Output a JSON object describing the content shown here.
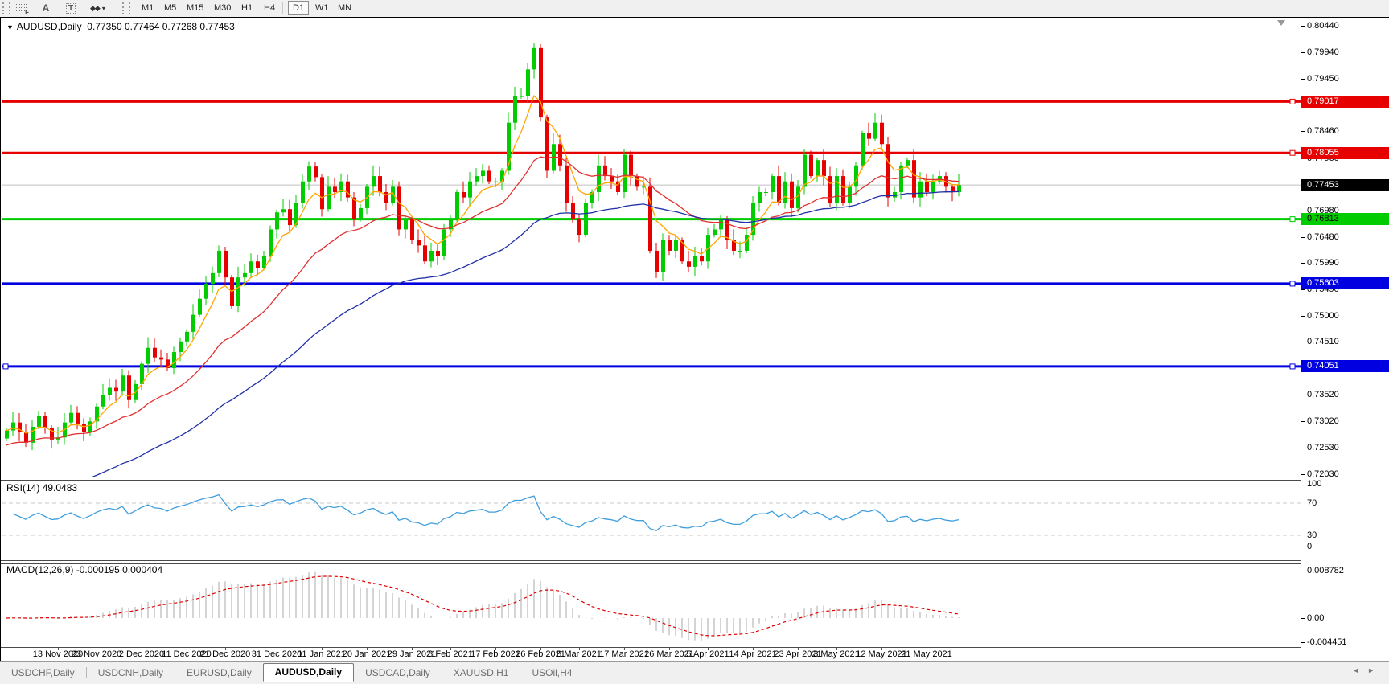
{
  "toolbar": {
    "tools": [
      {
        "name": "fibonacci-tool",
        "glyph": "F"
      },
      {
        "name": "text-label-tool",
        "glyph": "A"
      },
      {
        "name": "text-box-tool",
        "glyph": "T"
      },
      {
        "name": "arrow-tools",
        "glyph": "◆◆",
        "dropdown": "▾"
      }
    ],
    "timeframes": [
      "M1",
      "M5",
      "M15",
      "M30",
      "H1",
      "H4",
      "D1",
      "W1",
      "MN"
    ],
    "active_timeframe": "D1"
  },
  "chart_title": {
    "menu_icon": "▼",
    "symbol": "AUDUSD,Daily",
    "ohlc": "0.77350 0.77464 0.77268 0.77453"
  },
  "price_axis": {
    "ticks": [
      0.8044,
      0.7994,
      0.7945,
      0.7895,
      0.7846,
      0.7796,
      0.7747,
      0.7698,
      0.7648,
      0.7599,
      0.7549,
      0.75,
      0.7451,
      0.7402,
      0.7352,
      0.7302,
      0.7253,
      0.7203
    ],
    "badges": [
      {
        "label": "0.79017",
        "price": 0.79017,
        "bg": "#e60000",
        "fg": "#ffffff"
      },
      {
        "label": "0.78055",
        "price": 0.78055,
        "bg": "#e60000",
        "fg": "#ffffff"
      },
      {
        "label": "0.77453",
        "price": 0.77453,
        "bg": "#000000",
        "fg": "#ffffff"
      },
      {
        "label": "0.76813",
        "price": 0.76813,
        "bg": "#00cc00",
        "fg": "#000000"
      },
      {
        "label": "0.75603",
        "price": 0.75603,
        "bg": "#0000e0",
        "fg": "#ffffff"
      },
      {
        "label": "0.74051",
        "price": 0.74051,
        "bg": "#0000e0",
        "fg": "#ffffff"
      }
    ]
  },
  "rsi_panel": {
    "label": "RSI(14)",
    "value": "49.0483",
    "axis": [
      "100",
      "70",
      "30",
      "0"
    ]
  },
  "macd_panel": {
    "label": "MACD(12,26,9)",
    "values": "-0.000195 0.000404",
    "axis_top": "0.008782",
    "axis_zero": "0.00",
    "axis_bottom": "-0.004451"
  },
  "tabs": {
    "items": [
      {
        "label": "USDCHF,Daily",
        "active": false
      },
      {
        "label": "USDCNH,Daily",
        "active": false
      },
      {
        "label": "EURUSD,Daily",
        "active": false
      },
      {
        "label": "AUDUSD,Daily",
        "active": true
      },
      {
        "label": "USDCAD,Daily",
        "active": false
      },
      {
        "label": "XAUUSD,H1",
        "active": false
      },
      {
        "label": "USOil,H4",
        "active": false
      }
    ],
    "scroll_left": "◄",
    "scroll_right": "►"
  },
  "chart_data": {
    "type": "candlestick",
    "symbol": "AUDUSD",
    "timeframe": "Daily",
    "last_ohlc": {
      "open": 0.7735,
      "high": 0.77464,
      "low": 0.77268,
      "close": 0.77453
    },
    "price_axis_range": [
      0.72,
      0.8059
    ],
    "x_labels": [
      {
        "label": "13 Nov 2020",
        "bar": 8
      },
      {
        "label": "23 Nov 2020",
        "bar": 14
      },
      {
        "label": "2 Dec 2020",
        "bar": 21
      },
      {
        "label": "11 Dec 2020",
        "bar": 28
      },
      {
        "label": "21 Dec 2020",
        "bar": 34
      },
      {
        "label": "31 Dec 2020",
        "bar": 42
      },
      {
        "label": "11 Jan 2021",
        "bar": 49
      },
      {
        "label": "20 Jan 2021",
        "bar": 56
      },
      {
        "label": "29 Jan 2021",
        "bar": 63
      },
      {
        "label": "8 Feb 2021",
        "bar": 69
      },
      {
        "label": "17 Feb 2021",
        "bar": 76
      },
      {
        "label": "26 Feb 2021",
        "bar": 83
      },
      {
        "label": "8 Mar 2021",
        "bar": 89
      },
      {
        "label": "17 Mar 2021",
        "bar": 96
      },
      {
        "label": "26 Mar 2021",
        "bar": 103
      },
      {
        "label": "5 Apr 2021",
        "bar": 109
      },
      {
        "label": "14 Apr 2021",
        "bar": 116
      },
      {
        "label": "23 Apr 2021",
        "bar": 123
      },
      {
        "label": "3 May 2021",
        "bar": 129
      },
      {
        "label": "12 May 2021",
        "bar": 136
      },
      {
        "label": "21 May 2021",
        "bar": 143
      }
    ],
    "closes": [
      0.7285,
      0.73,
      0.7282,
      0.7262,
      0.7292,
      0.7312,
      0.729,
      0.7268,
      0.7272,
      0.73,
      0.7318,
      0.7298,
      0.7282,
      0.7302,
      0.733,
      0.7352,
      0.7365,
      0.7358,
      0.7388,
      0.7342,
      0.7372,
      0.741,
      0.744,
      0.7422,
      0.7418,
      0.7402,
      0.7432,
      0.7452,
      0.747,
      0.7502,
      0.7532,
      0.756,
      0.758,
      0.7622,
      0.7572,
      0.7518,
      0.7572,
      0.758,
      0.7602,
      0.759,
      0.7612,
      0.7662,
      0.7694,
      0.77,
      0.767,
      0.7712,
      0.7752,
      0.778,
      0.776,
      0.77,
      0.7742,
      0.7732,
      0.7752,
      0.7722,
      0.7682,
      0.7702,
      0.7742,
      0.7762,
      0.7732,
      0.7712,
      0.7742,
      0.7662,
      0.7682,
      0.7642,
      0.7632,
      0.7602,
      0.7622,
      0.7612,
      0.7662,
      0.7682,
      0.7732,
      0.7722,
      0.7752,
      0.7762,
      0.7772,
      0.7752,
      0.7752,
      0.7772,
      0.7862,
      0.7912,
      0.7912,
      0.7962,
      0.8002,
      0.7872,
      0.7772,
      0.7822,
      0.7782,
      0.7712,
      0.7682,
      0.7652,
      0.7712,
      0.7732,
      0.7782,
      0.7762,
      0.7752,
      0.7732,
      0.7802,
      0.7762,
      0.7742,
      0.7742,
      0.7622,
      0.7582,
      0.7642,
      0.7622,
      0.7642,
      0.7602,
      0.7592,
      0.7612,
      0.7602,
      0.7652,
      0.7662,
      0.7682,
      0.7642,
      0.7622,
      0.7622,
      0.7652,
      0.7712,
      0.7732,
      0.7732,
      0.7762,
      0.7712,
      0.7752,
      0.7702,
      0.7742,
      0.7802,
      0.7762,
      0.7792,
      0.7762,
      0.7712,
      0.7762,
      0.7712,
      0.7742,
      0.7782,
      0.7842,
      0.7832,
      0.7862,
      0.7822,
      0.7722,
      0.7732,
      0.7782,
      0.7792,
      0.7722,
      0.7752,
      0.7732,
      0.7752,
      0.7762,
      0.7742,
      0.7732,
      0.77453
    ],
    "objects": [
      {
        "type": "hline",
        "price": 0.79017,
        "color": "#e60000",
        "width": 3
      },
      {
        "type": "hline",
        "price": 0.78055,
        "color": "#e60000",
        "width": 3
      },
      {
        "type": "hline",
        "price": 0.76813,
        "color": "#00cc00",
        "width": 3
      },
      {
        "type": "hline",
        "price": 0.75603,
        "color": "#0000e0",
        "width": 3
      },
      {
        "type": "hline",
        "price": 0.74051,
        "color": "#0000e0",
        "width": 3
      },
      {
        "type": "bid_line",
        "price": 0.77453,
        "color": "#c0c0c0",
        "width": 1
      }
    ],
    "moving_averages": [
      {
        "name": "fast",
        "color": "#ffa500",
        "alpha": 0.28,
        "seed_offset": 0.0
      },
      {
        "name": "medium",
        "color": "#e03030",
        "alpha": 0.085,
        "seed_offset": -0.003
      },
      {
        "name": "slow",
        "color": "#2030a8",
        "alpha": 0.035,
        "seed_offset": -0.015
      }
    ],
    "indicators": [
      {
        "type": "RSI",
        "period": 14,
        "current": 49.0483,
        "range": [
          0,
          100
        ],
        "levels": [
          30,
          70
        ],
        "line_color": "#3e9ede"
      },
      {
        "type": "MACD",
        "fast": 12,
        "slow": 26,
        "signal": 9,
        "current_main": -0.000195,
        "current_signal": 0.000404,
        "axis_max": 0.008782,
        "axis_min": -0.004451,
        "histogram_color": "#aaaaaa",
        "signal_color": "#e00000"
      }
    ],
    "candle_up_color": "#00cc00",
    "candle_down_color": "#e60000"
  }
}
